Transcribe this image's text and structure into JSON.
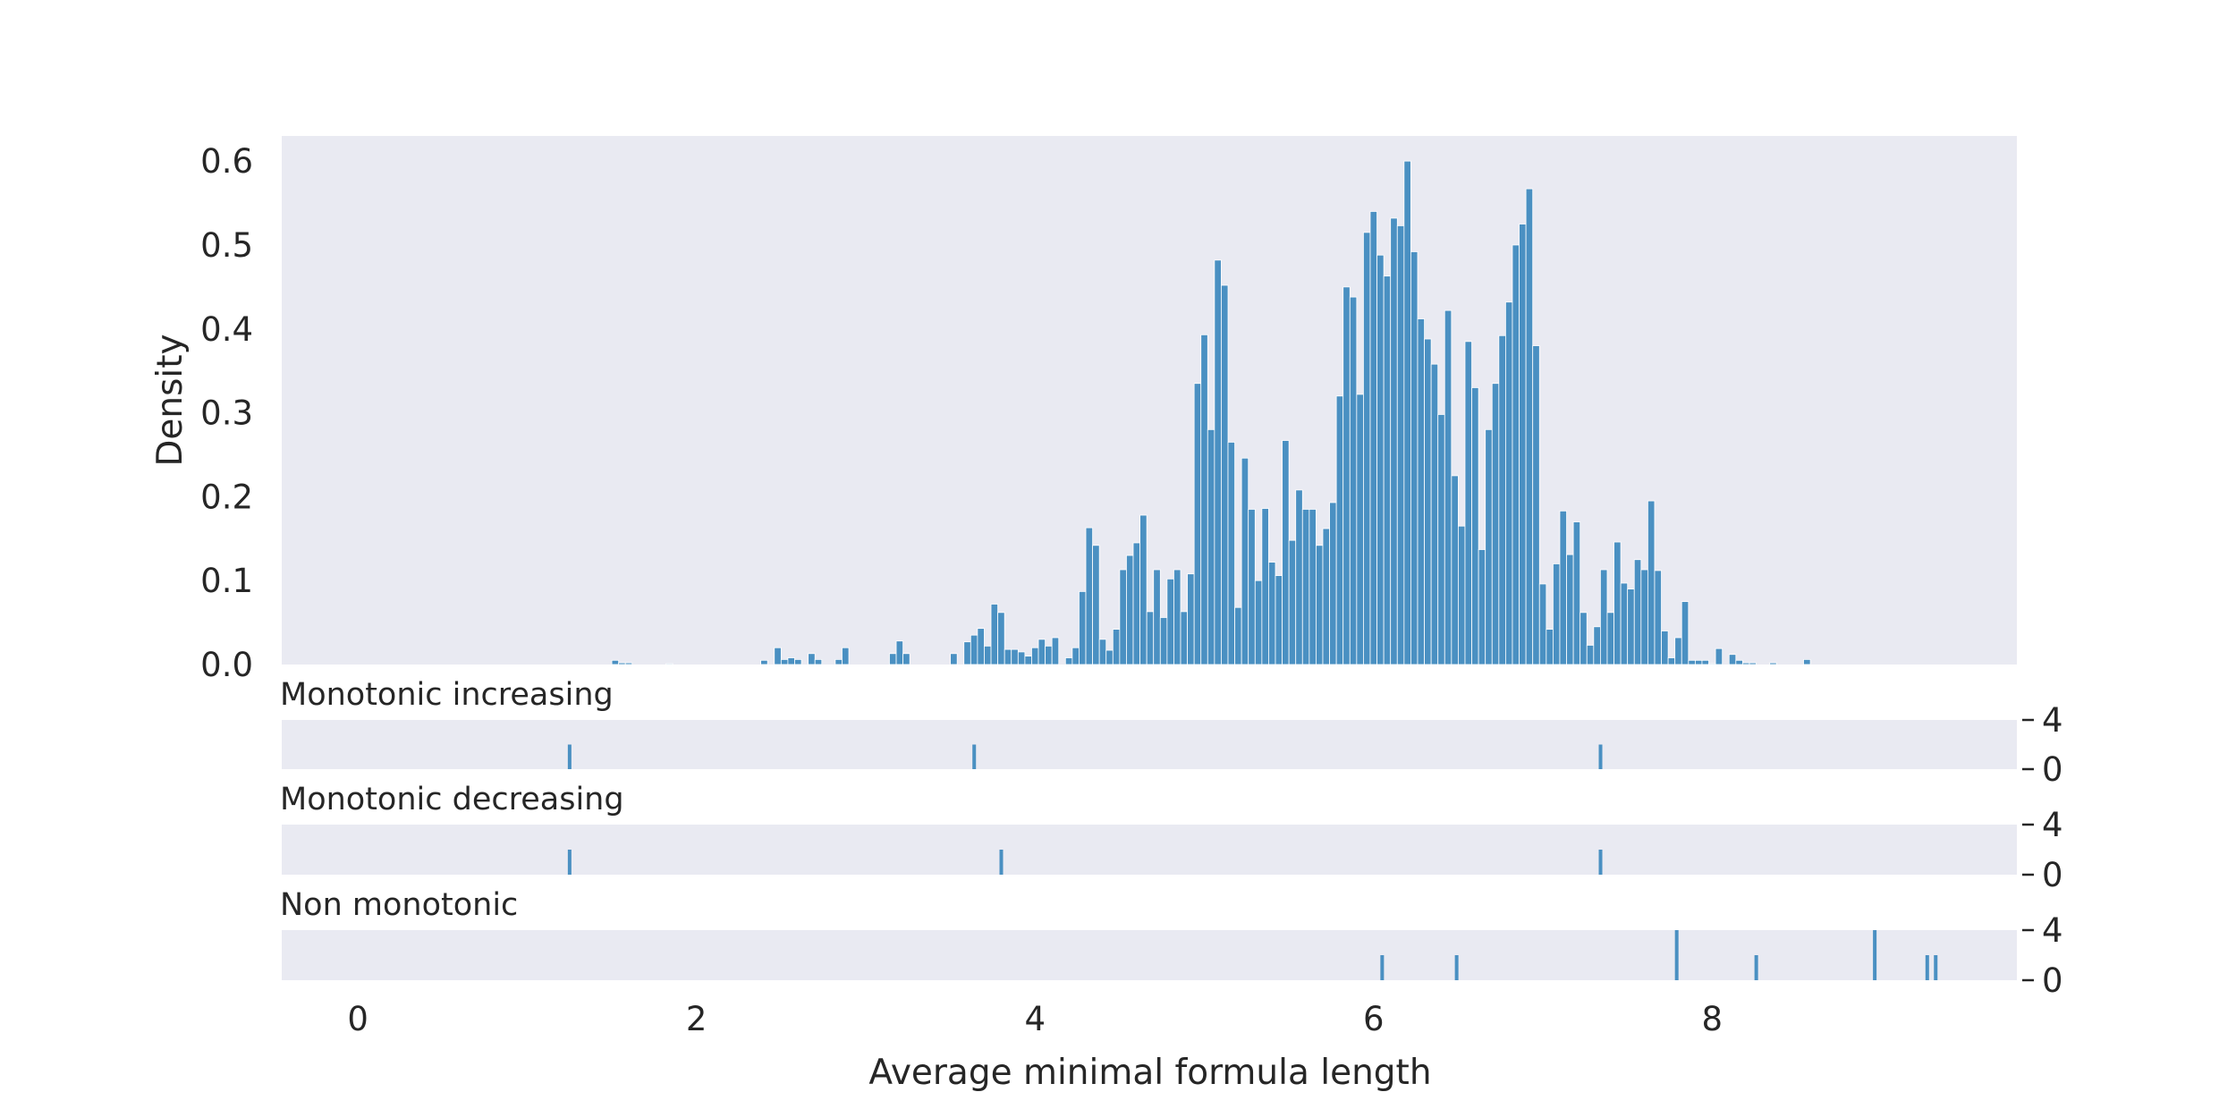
{
  "chart_data": [
    {
      "type": "bar",
      "xlabel": "Average minimal formula length",
      "ylabel": "Density",
      "xlim": [
        -0.45,
        9.8
      ],
      "ylim": [
        0,
        0.63
      ],
      "xticks": [
        "0",
        "2",
        "4",
        "6",
        "8"
      ],
      "yticks": [
        "0.0",
        "0.1",
        "0.2",
        "0.3",
        "0.4",
        "0.5",
        "0.6"
      ],
      "grid": false,
      "bar_color": "#4a90c2",
      "background": "#e9eaf2",
      "bin_start": 1.5,
      "bin_width": 0.04,
      "values": [
        0.005,
        0.002,
        0.002,
        0,
        0,
        0,
        0,
        0,
        0.001,
        0,
        0,
        0,
        0,
        0,
        0,
        0,
        0,
        0,
        0,
        0,
        0,
        0,
        0.005,
        0,
        0.02,
        0.006,
        0.008,
        0.006,
        0,
        0.013,
        0.006,
        0,
        0,
        0.006,
        0.02,
        0,
        0,
        0,
        0,
        0,
        0,
        0.013,
        0.028,
        0.013,
        0,
        0,
        0,
        0,
        0,
        0,
        0.013,
        0,
        0.027,
        0.035,
        0.043,
        0.022,
        0.072,
        0.062,
        0.018,
        0.018,
        0.015,
        0.01,
        0.02,
        0.03,
        0.022,
        0.032,
        0,
        0.008,
        0.02,
        0.087,
        0.163,
        0.142,
        0.03,
        0.017,
        0.042,
        0.113,
        0.13,
        0.145,
        0.178,
        0.063,
        0.113,
        0.056,
        0.102,
        0.113,
        0.063,
        0.108,
        0.335,
        0.393,
        0.28,
        0.482,
        0.452,
        0.265,
        0.068,
        0.246,
        0.185,
        0.1,
        0.186,
        0.122,
        0.106,
        0.267,
        0.148,
        0.208,
        0.185,
        0.185,
        0.142,
        0.162,
        0.193,
        0.32,
        0.45,
        0.438,
        0.322,
        0.515,
        0.54,
        0.488,
        0.463,
        0.532,
        0.523,
        0.6,
        0.492,
        0.412,
        0.388,
        0.358,
        0.298,
        0.422,
        0.225,
        0.165,
        0.385,
        0.33,
        0.137,
        0.28,
        0.335,
        0.392,
        0.432,
        0.5,
        0.525,
        0.567,
        0.38,
        0.096,
        0.042,
        0.12,
        0.183,
        0.131,
        0.17,
        0.062,
        0.023,
        0.045,
        0.113,
        0.062,
        0.146,
        0.097,
        0.09,
        0.125,
        0.113,
        0.195,
        0.112,
        0.04,
        0.008,
        0.032,
        0.075,
        0.005,
        0.005,
        0.005,
        0.001,
        0.019,
        0,
        0.012,
        0.005,
        0.002,
        0.002,
        0,
        0,
        0.002,
        0,
        0,
        0,
        0,
        0.006
      ]
    },
    {
      "type": "bar",
      "title": "Monotonic increasing",
      "ylim": [
        0,
        4
      ],
      "yticks": [
        "0",
        "4"
      ],
      "grid": false,
      "bar_width": 0.04,
      "x": [
        1.26,
        3.65,
        7.35
      ],
      "values": [
        2,
        2,
        2
      ]
    },
    {
      "type": "bar",
      "title": "Monotonic decreasing",
      "ylim": [
        0,
        4
      ],
      "yticks": [
        "0",
        "4"
      ],
      "grid": false,
      "bar_width": 0.04,
      "x": [
        1.26,
        3.81,
        7.35
      ],
      "values": [
        2,
        2,
        2
      ]
    },
    {
      "type": "bar",
      "title": "Non monotonic",
      "ylim": [
        0,
        4
      ],
      "yticks": [
        "0",
        "4"
      ],
      "grid": false,
      "bar_width": 0.04,
      "x": [
        6.06,
        6.5,
        7.8,
        8.27,
        8.97,
        9.28,
        9.33
      ],
      "values": [
        2,
        2,
        4,
        2,
        4,
        2,
        2
      ]
    }
  ]
}
